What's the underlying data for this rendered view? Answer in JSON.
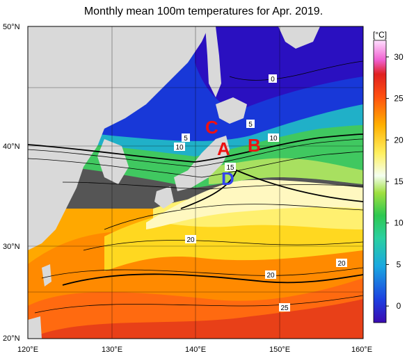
{
  "title": "Monthly mean 100m temperatures for Apr. 2019.",
  "axes": {
    "lon_labels": [
      "120°E",
      "130°E",
      "140°E",
      "150°E",
      "160°E"
    ],
    "lat_labels": [
      "50°N",
      "40°N",
      "30°N",
      "20°N"
    ]
  },
  "colorbar": {
    "unit": "[°C]",
    "ticks": [
      "30",
      "25",
      "20",
      "15",
      "10",
      "5",
      "0"
    ],
    "range": [
      -2,
      32
    ],
    "stops": [
      "#2a10c8",
      "#1d4fe0",
      "#1aa8e0",
      "#18c8b0",
      "#2ec850",
      "#a0e040",
      "#ffffff",
      "#fff060",
      "#ffd000",
      "#ff9a00",
      "#ff4a10",
      "#e02020",
      "#ff90ff",
      "#ffd6ff"
    ]
  },
  "isotherm_labels": [
    "0",
    "5",
    "10",
    "5",
    "10",
    "15",
    "20",
    "20",
    "20",
    "25"
  ],
  "markers": [
    {
      "label": "A",
      "color": "#ee1111"
    },
    {
      "label": "B",
      "color": "#ee1111"
    },
    {
      "label": "C",
      "color": "#ee1111"
    },
    {
      "label": "D",
      "color": "#3344ee"
    }
  ],
  "colors": {
    "land": "#d9d9d9",
    "nodata": "#555555"
  }
}
